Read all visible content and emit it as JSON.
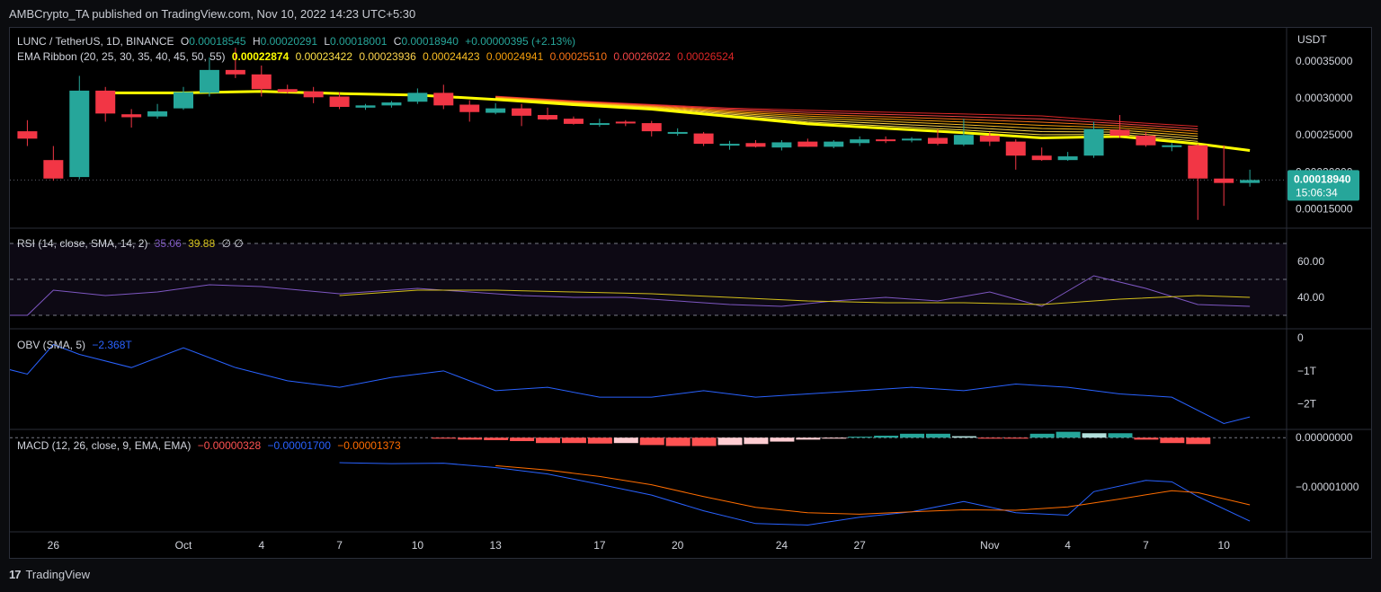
{
  "header": {
    "caption": "AMBCrypto_TA published on TradingView.com, Nov 10, 2022 14:23 UTC+5:30"
  },
  "footer": {
    "brand": "TradingView"
  },
  "colors": {
    "up": "#26a69a",
    "down": "#f23645",
    "ema_fast": "#ffff00",
    "ema_slow": "#e53935",
    "rsi": "#7e57c2",
    "rsi_ma": "#d4c01a",
    "obv": "#2962ff",
    "macd": "#2962ff",
    "signal": "#ff6d00",
    "hist_up": "#26a69a",
    "hist_up_weak": "#b2dfdb",
    "hist_down": "#ff5252",
    "hist_down_weak": "#ffcdd2",
    "price_tag": "#26a69a"
  },
  "legend": {
    "symbol": "LUNC / TetherUS, 1D, BINANCE",
    "o_label": "O",
    "o": "0.00018545",
    "h_label": "H",
    "h": "0.00020291",
    "l_label": "L",
    "l": "0.00018001",
    "c_label": "C",
    "c": "0.00018940",
    "change": "+0.00000395 (+2.13%)",
    "ema_name": "EMA Ribbon (20, 25, 30, 35, 40, 45, 50, 55)",
    "ema_values": [
      "0.00022874",
      "0.00023422",
      "0.00023936",
      "0.00024423",
      "0.00024941",
      "0.00025510",
      "0.00026022",
      "0.00026524"
    ],
    "rsi_name": "RSI (14, close, SMA, 14, 2)",
    "rsi_value": "35.06",
    "rsi_ma_value": "39.88",
    "rsi_extra": "∅ ∅",
    "obv_name": "OBV (SMA, 5)",
    "obv_value": "−2.368T",
    "macd_name": "MACD (12, 26, close, 9, EMA, EMA)",
    "macd_hist": "−0.00000328",
    "macd_value": "−0.00001700",
    "macd_signal": "−0.00001373"
  },
  "price_axis": {
    "unit": "USDT",
    "ticks": [
      "0.00035000",
      "0.00030000",
      "0.00025000",
      "0.00020000",
      "0.00015000"
    ],
    "tick_values": [
      0.00035,
      0.0003,
      0.00025,
      0.0002,
      0.00015
    ],
    "last_price": "0.00018940",
    "countdown": "15:06:34"
  },
  "rsi_axis": {
    "ticks": [
      "60.00",
      "40.00"
    ],
    "tick_values": [
      60,
      40
    ]
  },
  "obv_axis": {
    "ticks": [
      "0",
      "−1T",
      "−2T"
    ],
    "tick_values": [
      0,
      -1,
      -2
    ]
  },
  "macd_axis": {
    "ticks": [
      "0.00000000",
      "−0.00001000"
    ],
    "tick_values": [
      0,
      -1e-05
    ]
  },
  "time_axis": {
    "labels": [
      "26",
      "Oct",
      "4",
      "7",
      "10",
      "13",
      "17",
      "20",
      "24",
      "27",
      "Nov",
      "4",
      "7",
      "10"
    ],
    "label_days": [
      -5,
      0,
      3,
      6,
      9,
      12,
      16,
      19,
      23,
      26,
      31,
      34,
      37,
      40
    ]
  },
  "chart_data": [
    {
      "type": "candlestick",
      "title": "LUNC / TetherUS, 1D, BINANCE",
      "x_unit": "day offset from Oct 1, 2022",
      "ylim": [
        0.000125,
        0.000395
      ],
      "candles": [
        {
          "d": -6,
          "o": 0.000255,
          "h": 0.00027,
          "l": 0.000235,
          "c": 0.000245
        },
        {
          "d": -5,
          "o": 0.000216,
          "h": 0.000235,
          "l": 0.000188,
          "c": 0.000191
        },
        {
          "d": -4,
          "o": 0.000193,
          "h": 0.00033,
          "l": 0.00019,
          "c": 0.00031
        },
        {
          "d": -3,
          "o": 0.00031,
          "h": 0.000315,
          "l": 0.000268,
          "c": 0.000279
        },
        {
          "d": -2,
          "o": 0.000278,
          "h": 0.000285,
          "l": 0.00026,
          "c": 0.000274
        },
        {
          "d": -1,
          "o": 0.000275,
          "h": 0.000292,
          "l": 0.000272,
          "c": 0.000282
        },
        {
          "d": 0,
          "o": 0.000286,
          "h": 0.000315,
          "l": 0.000284,
          "c": 0.000308
        },
        {
          "d": 1,
          "o": 0.000307,
          "h": 0.000355,
          "l": 0.000302,
          "c": 0.000338
        },
        {
          "d": 2,
          "o": 0.000338,
          "h": 0.000368,
          "l": 0.000327,
          "c": 0.000332
        },
        {
          "d": 3,
          "o": 0.000332,
          "h": 0.000344,
          "l": 0.000302,
          "c": 0.000312
        },
        {
          "d": 4,
          "o": 0.000312,
          "h": 0.000318,
          "l": 0.000306,
          "c": 0.000308
        },
        {
          "d": 5,
          "o": 0.000309,
          "h": 0.000315,
          "l": 0.000293,
          "c": 0.000301
        },
        {
          "d": 6,
          "o": 0.000302,
          "h": 0.000308,
          "l": 0.000285,
          "c": 0.000288
        },
        {
          "d": 7,
          "o": 0.000287,
          "h": 0.000292,
          "l": 0.000284,
          "c": 0.00029
        },
        {
          "d": 8,
          "o": 0.00029,
          "h": 0.000296,
          "l": 0.000287,
          "c": 0.000294
        },
        {
          "d": 9,
          "o": 0.000295,
          "h": 0.000313,
          "l": 0.000292,
          "c": 0.000307
        },
        {
          "d": 10,
          "o": 0.000307,
          "h": 0.000318,
          "l": 0.000285,
          "c": 0.00029
        },
        {
          "d": 11,
          "o": 0.000291,
          "h": 0.000297,
          "l": 0.000268,
          "c": 0.000281
        },
        {
          "d": 12,
          "o": 0.00028,
          "h": 0.000293,
          "l": 0.000278,
          "c": 0.000286
        },
        {
          "d": 13,
          "o": 0.000286,
          "h": 0.000292,
          "l": 0.000262,
          "c": 0.000276
        },
        {
          "d": 14,
          "o": 0.000277,
          "h": 0.000287,
          "l": 0.00027,
          "c": 0.000271
        },
        {
          "d": 15,
          "o": 0.000272,
          "h": 0.000275,
          "l": 0.000264,
          "c": 0.000265
        },
        {
          "d": 16,
          "o": 0.000266,
          "h": 0.000272,
          "l": 0.000261,
          "c": 0.000266
        },
        {
          "d": 17,
          "o": 0.000268,
          "h": 0.00027,
          "l": 0.000262,
          "c": 0.000266
        },
        {
          "d": 18,
          "o": 0.000266,
          "h": 0.000269,
          "l": 0.000248,
          "c": 0.000255
        },
        {
          "d": 19,
          "o": 0.000254,
          "h": 0.000259,
          "l": 0.000249,
          "c": 0.000254
        },
        {
          "d": 20,
          "o": 0.000252,
          "h": 0.000254,
          "l": 0.000235,
          "c": 0.000238
        },
        {
          "d": 21,
          "o": 0.000237,
          "h": 0.000242,
          "l": 0.00023,
          "c": 0.000238
        },
        {
          "d": 22,
          "o": 0.000239,
          "h": 0.000243,
          "l": 0.000233,
          "c": 0.000234
        },
        {
          "d": 23,
          "o": 0.000233,
          "h": 0.000243,
          "l": 0.000229,
          "c": 0.00024
        },
        {
          "d": 24,
          "o": 0.000241,
          "h": 0.000245,
          "l": 0.000234,
          "c": 0.000234
        },
        {
          "d": 25,
          "o": 0.000234,
          "h": 0.000243,
          "l": 0.000232,
          "c": 0.000241
        },
        {
          "d": 26,
          "o": 0.000239,
          "h": 0.000248,
          "l": 0.000235,
          "c": 0.000244
        },
        {
          "d": 27,
          "o": 0.000244,
          "h": 0.000248,
          "l": 0.000239,
          "c": 0.000242
        },
        {
          "d": 28,
          "o": 0.000243,
          "h": 0.000247,
          "l": 0.00024,
          "c": 0.000245
        },
        {
          "d": 29,
          "o": 0.000246,
          "h": 0.000258,
          "l": 0.000236,
          "c": 0.000238
        },
        {
          "d": 30,
          "o": 0.000237,
          "h": 0.000272,
          "l": 0.000235,
          "c": 0.00025
        },
        {
          "d": 31,
          "o": 0.000249,
          "h": 0.000254,
          "l": 0.000235,
          "c": 0.000241
        },
        {
          "d": 32,
          "o": 0.000241,
          "h": 0.000244,
          "l": 0.000203,
          "c": 0.000222
        },
        {
          "d": 33,
          "o": 0.000222,
          "h": 0.000233,
          "l": 0.000215,
          "c": 0.000216
        },
        {
          "d": 34,
          "o": 0.000216,
          "h": 0.000227,
          "l": 0.000215,
          "c": 0.000221
        },
        {
          "d": 35,
          "o": 0.000222,
          "h": 0.000268,
          "l": 0.000219,
          "c": 0.000258
        },
        {
          "d": 36,
          "o": 0.000257,
          "h": 0.000277,
          "l": 0.000246,
          "c": 0.000249
        },
        {
          "d": 37,
          "o": 0.000249,
          "h": 0.000254,
          "l": 0.000234,
          "c": 0.000236
        },
        {
          "d": 38,
          "o": 0.000234,
          "h": 0.000239,
          "l": 0.000228,
          "c": 0.000236
        },
        {
          "d": 39,
          "o": 0.000236,
          "h": 0.000238,
          "l": 0.000135,
          "c": 0.000191
        },
        {
          "d": 40,
          "o": 0.000191,
          "h": 0.000236,
          "l": 0.000154,
          "c": 0.000185
        },
        {
          "d": 41,
          "o": 0.000185,
          "h": 0.000203,
          "l": 0.00018,
          "c": 0.000189
        }
      ],
      "ema_ribbon": {
        "x": [
          -3,
          0,
          3,
          6,
          9,
          12,
          15,
          18,
          21,
          24,
          27,
          30,
          33,
          36,
          39,
          41
        ],
        "fastest": [
          0.000307,
          0.000307,
          0.000309,
          0.000306,
          0.000304,
          0.000298,
          0.000291,
          0.000285,
          0.000275,
          0.000265,
          0.000259,
          0.000253,
          0.000246,
          0.000248,
          0.000238,
          0.000229
        ],
        "slowest_start_x": 12,
        "slowest": [
          0.000303,
          0.000297,
          0.000292,
          0.000288,
          0.000286,
          0.000284,
          0.000282,
          0.00028,
          0.000271,
          0.000265
        ]
      }
    },
    {
      "type": "line",
      "title": "RSI (14, close, SMA, 14, 2)",
      "ylim": [
        23,
        78
      ],
      "bands": [
        30,
        50,
        70
      ],
      "x": [
        -7,
        -6,
        -5,
        -3,
        -1,
        1,
        3,
        6,
        9,
        11,
        13,
        15,
        17,
        19,
        21,
        23,
        25,
        27,
        29,
        31,
        33,
        35,
        37,
        39,
        41
      ],
      "series": [
        {
          "key": "rsi",
          "values": [
            30,
            30,
            44,
            41,
            43,
            47,
            46,
            42,
            45,
            43,
            41,
            40,
            40,
            38,
            36,
            35,
            38,
            40,
            38,
            43,
            35,
            52,
            45,
            36,
            35
          ]
        },
        {
          "key": "rsi_ma",
          "x": [
            6,
            9,
            12,
            15,
            18,
            21,
            24,
            27,
            30,
            33,
            36,
            39,
            41
          ],
          "values": [
            41,
            44,
            44,
            43,
            42,
            40,
            38,
            37,
            37,
            36,
            39,
            41,
            40
          ]
        }
      ]
    },
    {
      "type": "line",
      "title": "OBV (SMA, 5)",
      "ylim": [
        -2.75,
        0.25
      ],
      "x": [
        -7,
        -6,
        -5,
        -4,
        -2,
        0,
        2,
        4,
        6,
        8,
        10,
        12,
        14,
        16,
        18,
        20,
        22,
        24,
        26,
        28,
        30,
        32,
        34,
        36,
        38,
        40,
        41
      ],
      "series": [
        {
          "key": "obv",
          "values": [
            -0.9,
            -1.1,
            -0.2,
            -0.5,
            -0.9,
            -0.3,
            -0.9,
            -1.3,
            -1.5,
            -1.2,
            -1.0,
            -1.6,
            -1.5,
            -1.8,
            -1.8,
            -1.6,
            -1.8,
            -1.7,
            -1.6,
            -1.5,
            -1.6,
            -1.4,
            -1.5,
            -1.7,
            -1.8,
            -2.6,
            -2.4
          ]
        }
      ]
    },
    {
      "type": "bar+line",
      "title": "MACD (12, 26, close, 9, EMA, EMA)",
      "ylim": [
        -1.9e-05,
        1.5e-06
      ],
      "histogram_x_start": 10,
      "histogram": [
        -2e-07,
        -4e-07,
        -5e-07,
        -7e-07,
        -1.1e-06,
        -1.1e-06,
        -1.2e-06,
        -1.1e-06,
        -1.5e-06,
        -1.7e-06,
        -1.7e-06,
        -1.5e-06,
        -1.3e-06,
        -8e-07,
        -4e-07,
        -2e-07,
        2e-07,
        4e-07,
        8e-07,
        8e-07,
        3e-07,
        -2e-07,
        -2e-07,
        8e-07,
        1.2e-06,
        9e-07,
        9e-07,
        -4e-07,
        -1.1e-06,
        -1.3e-06
      ],
      "macd_x": [
        6,
        8,
        10,
        12,
        14,
        16,
        18,
        20,
        22,
        24,
        26,
        28,
        30,
        32,
        34,
        35,
        37,
        38,
        39,
        41
      ],
      "macd": [
        -5.1e-06,
        -5.3e-06,
        -5.2e-06,
        -6.1e-06,
        -7.4e-06,
        -9.5e-06,
        -1.17e-05,
        -1.49e-05,
        -1.75e-05,
        -1.78e-05,
        -1.62e-05,
        -1.51e-05,
        -1.3e-05,
        -1.53e-05,
        -1.58e-05,
        -1.1e-05,
        -8.7e-06,
        -9e-06,
        -1.2e-05,
        -1.7e-05
      ],
      "signal_x": [
        12,
        14,
        16,
        18,
        20,
        22,
        24,
        26,
        28,
        30,
        32,
        34,
        36,
        38,
        39,
        41
      ],
      "signal": [
        -5.7e-06,
        -6.6e-06,
        -7.9e-06,
        -9.6e-06,
        -1.2e-05,
        -1.42e-05,
        -1.53e-05,
        -1.56e-05,
        -1.51e-05,
        -1.47e-05,
        -1.48e-05,
        -1.41e-05,
        -1.25e-05,
        -1.08e-05,
        -1.12e-05,
        -1.37e-05
      ]
    }
  ]
}
